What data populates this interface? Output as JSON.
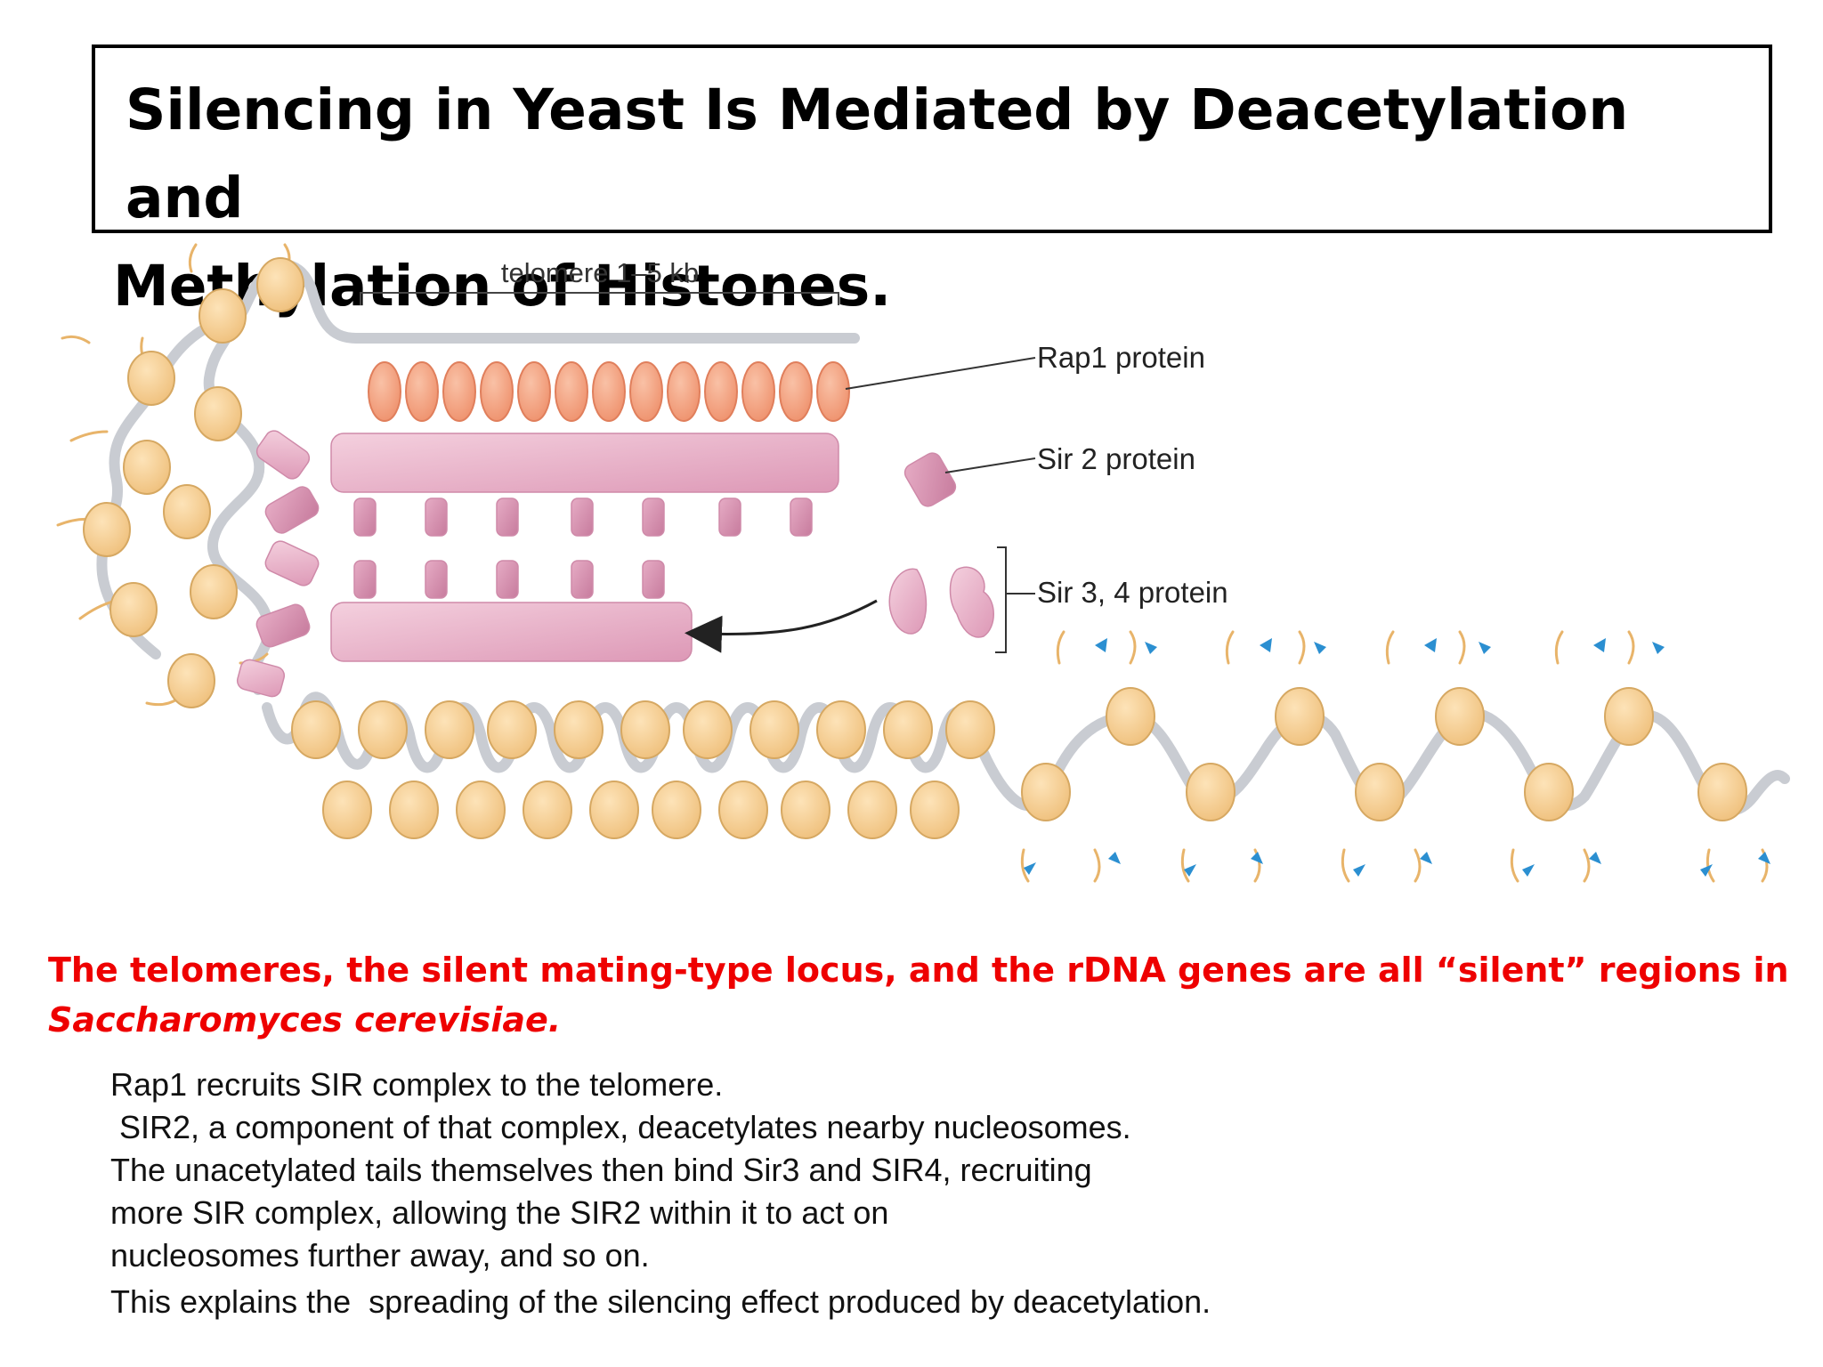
{
  "title": {
    "line1": "Silencing in Yeast Is Mediated by  Deacetylation and",
    "line2": "Methylation of Histones."
  },
  "diagram": {
    "bracket_label": "telomere 1–5 kb",
    "labels": {
      "rap1": "Rap1 protein",
      "sir2": "Sir 2 protein",
      "sir34": "Sir 3, 4 protein"
    },
    "colors": {
      "rap1": "#f2a07e",
      "sir": "#e7a9c3",
      "nucleosome": "#f6cf96",
      "dna": "#c9ccd2",
      "acetyl_marker": "#2b8fd1"
    }
  },
  "summary": {
    "line1": "The telomeres, the silent mating-type locus, and  the rDNA genes are all “silent” regions in",
    "line2": "Saccharomyces  cerevisiae."
  },
  "explanation": {
    "line1": "Rap1 recruits SIR complex to the telomere.",
    "line2": " SIR2, a component of that complex, deacetylates nearby nucleosomes.",
    "line3": "The unacetylated tails themselves then bind Sir3 and SIR4, recruiting",
    "line4": "more SIR complex, allowing the SIR2 within it to act on",
    "line5": "nucleosomes further away, and so on.",
    "line6": "This explains the  spreading of the silencing effect produced by deacetylation."
  }
}
